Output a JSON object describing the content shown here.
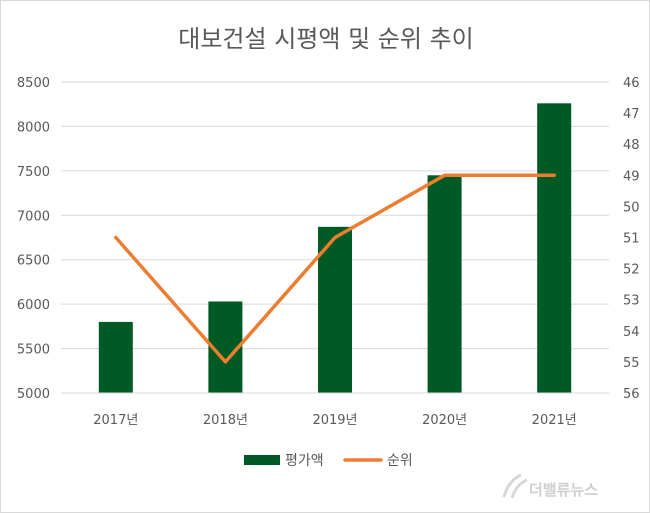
{
  "chart_data": {
    "type": "bar",
    "title": "대보건설 시평액 및 순위 추이",
    "categories": [
      "2017년",
      "2018년",
      "2019년",
      "2020년",
      "2021년"
    ],
    "series": [
      {
        "name": "평가액",
        "type": "bar",
        "axis": "left",
        "color": "#005a23",
        "values": [
          5800,
          6030,
          6870,
          7450,
          8260
        ]
      },
      {
        "name": "순위",
        "type": "line",
        "axis": "right-inverted",
        "color": "#ed7d31",
        "values": [
          51,
          55,
          51,
          49,
          49
        ]
      }
    ],
    "ylim": [
      5000,
      8500
    ],
    "y_ticks": [
      "5000",
      "5500",
      "6000",
      "6500",
      "7000",
      "7500",
      "8000",
      "8500"
    ],
    "y2lim": [
      46,
      56
    ],
    "y2_ticks": [
      "46",
      "47",
      "48",
      "49",
      "50",
      "51",
      "52",
      "53",
      "54",
      "55",
      "56"
    ],
    "y2_inverted": true,
    "grid": true,
    "legend_position": "bottom"
  },
  "watermark": {
    "text": "더밸류뉴스"
  }
}
